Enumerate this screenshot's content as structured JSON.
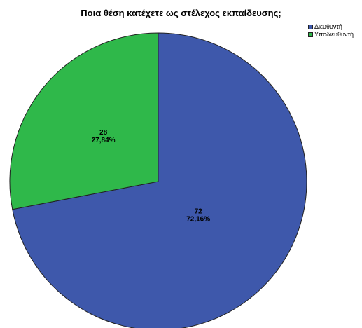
{
  "chart_data": {
    "type": "pie",
    "title": "Ποια θέση κατέχετε ως στέλεχος εκπαίδευσης;",
    "categories": [
      "Διευθυντή",
      "Υποδιευθυντή"
    ],
    "values": [
      72,
      28
    ],
    "percent_labels": [
      "72,16%",
      "27,84%"
    ],
    "colors": [
      "#3e58ab",
      "#2fb84a"
    ],
    "start_angle_deg": 0,
    "direction": "clockwise",
    "legend": "top-right",
    "legend_entries": [
      "Διευθυντή",
      "Υποδιευθυντή"
    ]
  }
}
